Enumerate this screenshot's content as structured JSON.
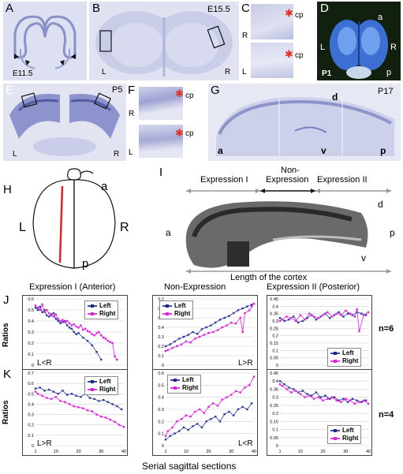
{
  "panels": {
    "A": {
      "letter": "A",
      "stage": "E11.5"
    },
    "B": {
      "letter": "B",
      "stage": "E15.5",
      "left": "L",
      "right": "R"
    },
    "C": {
      "letter": "C",
      "cp_top": "cp",
      "cp_bottom": "cp",
      "r": "R",
      "l": "L"
    },
    "D": {
      "letter": "D",
      "stage": "P1",
      "a": "a",
      "l": "L",
      "r": "R",
      "p": "p"
    },
    "E": {
      "letter": "E",
      "stage": "P5",
      "left": "L",
      "right": "R"
    },
    "F": {
      "letter": "F",
      "cp_top": "cp",
      "cp_bottom": "cp",
      "r": "R",
      "l": "L"
    },
    "G": {
      "letter": "G",
      "stage": "P17",
      "d": "d",
      "a": "a",
      "v": "v",
      "p": "p"
    },
    "H": {
      "letter": "H",
      "a": "a",
      "l": "L",
      "r": "R",
      "p": "p"
    },
    "I": {
      "letter": "I",
      "expr1": "Expression I",
      "non1": "Non-",
      "non2": "Expression",
      "expr2": "Expression II",
      "d": "d",
      "a": "a",
      "p": "p",
      "v": "v",
      "length": "Length of the cortex"
    }
  },
  "rows": {
    "J": {
      "letter": "J",
      "titles": [
        "Expression I (Anterior)",
        "Non-Expression",
        "Expression II (Posterior)"
      ],
      "n": "n=6"
    },
    "K": {
      "letter": "K",
      "n": "n=4"
    }
  },
  "ylabel": "Ratios",
  "xlabel": "Serial sagittal sections",
  "legend": {
    "left": "Left",
    "right": "Right"
  },
  "colors": {
    "left": "#2b3a9a",
    "right": "#e020e0"
  },
  "chart_data": [
    {
      "id": "J1",
      "type": "line",
      "ylim": [
        0,
        0.6
      ],
      "yticks": [
        "0",
        "0.1",
        "0.2",
        "0.3",
        "0.4",
        "0.5",
        "0.6"
      ],
      "xticks": [
        "1",
        "10",
        "20",
        "30",
        "40"
      ],
      "annotation": "L<R",
      "series": [
        {
          "name": "Left",
          "x": [
            1,
            2,
            3,
            4,
            5,
            6,
            7,
            8,
            9,
            10,
            11,
            12,
            13,
            14,
            15,
            16,
            17,
            18,
            19,
            20,
            22,
            24,
            26,
            28,
            30
          ],
          "y": [
            0.52,
            0.5,
            0.53,
            0.48,
            0.5,
            0.45,
            0.44,
            0.46,
            0.47,
            0.42,
            0.4,
            0.38,
            0.39,
            0.4,
            0.36,
            0.34,
            0.33,
            0.3,
            0.28,
            0.29,
            0.25,
            0.22,
            0.18,
            0.12,
            0.05
          ]
        },
        {
          "name": "Right",
          "x": [
            1,
            2,
            3,
            4,
            5,
            6,
            7,
            8,
            9,
            10,
            11,
            12,
            13,
            14,
            15,
            16,
            17,
            18,
            19,
            20,
            21,
            22,
            23,
            24,
            25,
            26,
            27,
            28,
            29,
            30,
            31,
            32,
            33,
            34,
            35,
            36,
            37
          ],
          "y": [
            0.54,
            0.52,
            0.5,
            0.55,
            0.48,
            0.5,
            0.47,
            0.45,
            0.44,
            0.46,
            0.42,
            0.4,
            0.41,
            0.39,
            0.4,
            0.38,
            0.36,
            0.37,
            0.35,
            0.34,
            0.36,
            0.32,
            0.33,
            0.31,
            0.3,
            0.28,
            0.27,
            0.29,
            0.3,
            0.27,
            0.25,
            0.24,
            0.22,
            0.21,
            0.2,
            0.08,
            0.05
          ]
        }
      ]
    },
    {
      "id": "J2",
      "type": "line",
      "ylim": [
        0,
        0.7
      ],
      "yticks": [
        "0",
        "0.1",
        "0.2",
        "0.3",
        "0.4",
        "0.5",
        "0.6",
        "0.7"
      ],
      "xticks": [
        "1",
        "10",
        "20",
        "30",
        "40"
      ],
      "annotation": "L>R",
      "series": [
        {
          "name": "Left",
          "x": [
            1,
            3,
            5,
            7,
            9,
            11,
            13,
            15,
            17,
            19,
            21,
            23,
            25,
            27,
            29,
            31,
            33,
            35,
            37,
            39
          ],
          "y": [
            0.2,
            0.22,
            0.25,
            0.28,
            0.3,
            0.32,
            0.35,
            0.33,
            0.38,
            0.4,
            0.42,
            0.45,
            0.48,
            0.5,
            0.52,
            0.55,
            0.58,
            0.6,
            0.62,
            0.64
          ]
        },
        {
          "name": "Right",
          "x": [
            1,
            2,
            4,
            6,
            8,
            10,
            12,
            14,
            16,
            18,
            20,
            22,
            24,
            26,
            28,
            30,
            32,
            34,
            35,
            36,
            38,
            39,
            40
          ],
          "y": [
            0.15,
            0.16,
            0.18,
            0.2,
            0.22,
            0.25,
            0.24,
            0.28,
            0.3,
            0.32,
            0.34,
            0.35,
            0.37,
            0.4,
            0.42,
            0.45,
            0.44,
            0.5,
            0.35,
            0.55,
            0.58,
            0.62,
            0.65
          ]
        }
      ]
    },
    {
      "id": "J3",
      "type": "line",
      "ylim": [
        0,
        0.45
      ],
      "yticks": [
        "0",
        "0.05",
        "0.1",
        "0.15",
        "0.2",
        "0.25",
        "0.3",
        "0.35",
        "0.4",
        "0.45"
      ],
      "xticks": [
        "1",
        "10",
        "20",
        "30",
        "40"
      ],
      "annotation": "",
      "series": [
        {
          "name": "Left",
          "x": [
            1,
            3,
            5,
            7,
            9,
            11,
            13,
            15,
            17,
            19,
            21,
            23,
            25,
            27,
            29,
            31,
            33,
            35,
            37,
            39
          ],
          "y": [
            0.32,
            0.3,
            0.31,
            0.33,
            0.29,
            0.3,
            0.32,
            0.34,
            0.31,
            0.33,
            0.35,
            0.32,
            0.34,
            0.36,
            0.33,
            0.35,
            0.34,
            0.36,
            0.35,
            0.34
          ]
        },
        {
          "name": "Right",
          "x": [
            1,
            2,
            4,
            6,
            8,
            10,
            12,
            14,
            16,
            18,
            20,
            22,
            24,
            26,
            28,
            30,
            32,
            34,
            35,
            36,
            38,
            40
          ],
          "y": [
            0.3,
            0.31,
            0.33,
            0.32,
            0.3,
            0.34,
            0.31,
            0.35,
            0.33,
            0.32,
            0.34,
            0.36,
            0.33,
            0.35,
            0.34,
            0.37,
            0.35,
            0.33,
            0.38,
            0.23,
            0.34,
            0.36
          ]
        }
      ]
    },
    {
      "id": "K1",
      "type": "line",
      "ylim": [
        0,
        0.7
      ],
      "yticks": [
        "0",
        "0.1",
        "0.2",
        "0.3",
        "0.4",
        "0.5",
        "0.6",
        "0.7"
      ],
      "xticks": [
        "1",
        "10",
        "20",
        "30",
        "40"
      ],
      "annotation": "L>R",
      "series": [
        {
          "name": "Left",
          "x": [
            1,
            3,
            5,
            7,
            9,
            11,
            13,
            15,
            17,
            19,
            21,
            23,
            25,
            27,
            29,
            31,
            33,
            35,
            37,
            39
          ],
          "y": [
            0.55,
            0.56,
            0.53,
            0.54,
            0.52,
            0.5,
            0.53,
            0.49,
            0.5,
            0.48,
            0.47,
            0.5,
            0.46,
            0.45,
            0.43,
            0.44,
            0.42,
            0.4,
            0.38,
            0.35
          ]
        },
        {
          "name": "Right",
          "x": [
            1,
            2,
            4,
            6,
            8,
            10,
            12,
            14,
            16,
            18,
            20,
            22,
            24,
            26,
            28,
            30,
            32,
            34,
            36,
            38,
            40
          ],
          "y": [
            0.52,
            0.5,
            0.48,
            0.46,
            0.45,
            0.47,
            0.43,
            0.42,
            0.4,
            0.38,
            0.37,
            0.36,
            0.34,
            0.33,
            0.3,
            0.28,
            0.27,
            0.25,
            0.23,
            0.2,
            0.18
          ]
        }
      ]
    },
    {
      "id": "K2",
      "type": "line",
      "ylim": [
        0,
        0.6
      ],
      "yticks": [
        "0",
        "0.1",
        "0.2",
        "0.3",
        "0.4",
        "0.5",
        "0.6"
      ],
      "xticks": [
        "1",
        "10",
        "20",
        "30",
        "40"
      ],
      "annotation": "L<R",
      "series": [
        {
          "name": "Left",
          "x": [
            1,
            3,
            5,
            7,
            9,
            11,
            13,
            15,
            17,
            19,
            21,
            23,
            25,
            27,
            29,
            31,
            33,
            35,
            37,
            39
          ],
          "y": [
            0.05,
            0.08,
            0.1,
            0.12,
            0.15,
            0.13,
            0.16,
            0.18,
            0.15,
            0.2,
            0.22,
            0.24,
            0.2,
            0.26,
            0.28,
            0.25,
            0.3,
            0.32,
            0.3,
            0.35
          ]
        },
        {
          "name": "Right",
          "x": [
            1,
            2,
            4,
            6,
            8,
            10,
            12,
            14,
            16,
            18,
            20,
            22,
            24,
            26,
            28,
            30,
            32,
            34,
            36,
            38,
            40
          ],
          "y": [
            0.08,
            0.12,
            0.15,
            0.2,
            0.22,
            0.25,
            0.24,
            0.28,
            0.3,
            0.27,
            0.32,
            0.35,
            0.33,
            0.38,
            0.4,
            0.42,
            0.45,
            0.44,
            0.48,
            0.5,
            0.57
          ]
        }
      ]
    },
    {
      "id": "K3",
      "type": "line",
      "ylim": [
        0,
        0.45
      ],
      "yticks": [
        "0",
        "0.05",
        "0.1",
        "0.15",
        "0.2",
        "0.25",
        "0.3",
        "0.35",
        "0.4",
        "0.45"
      ],
      "xticks": [
        "1",
        "10",
        "20",
        "30",
        "40"
      ],
      "annotation": "",
      "series": [
        {
          "name": "Left",
          "x": [
            1,
            3,
            5,
            7,
            9,
            11,
            13,
            15,
            17,
            19,
            21,
            23,
            25,
            27,
            29,
            31,
            33,
            35,
            37,
            39
          ],
          "y": [
            0.4,
            0.38,
            0.36,
            0.35,
            0.33,
            0.34,
            0.32,
            0.31,
            0.33,
            0.3,
            0.31,
            0.29,
            0.3,
            0.28,
            0.29,
            0.27,
            0.29,
            0.28,
            0.27,
            0.28
          ]
        },
        {
          "name": "Right",
          "x": [
            1,
            2,
            4,
            6,
            8,
            10,
            12,
            14,
            16,
            18,
            20,
            22,
            24,
            26,
            28,
            30,
            32,
            34,
            36,
            38,
            40
          ],
          "y": [
            0.38,
            0.37,
            0.35,
            0.33,
            0.34,
            0.32,
            0.3,
            0.31,
            0.29,
            0.3,
            0.28,
            0.29,
            0.3,
            0.28,
            0.27,
            0.29,
            0.28,
            0.26,
            0.27,
            0.28,
            0.26
          ]
        }
      ]
    }
  ]
}
